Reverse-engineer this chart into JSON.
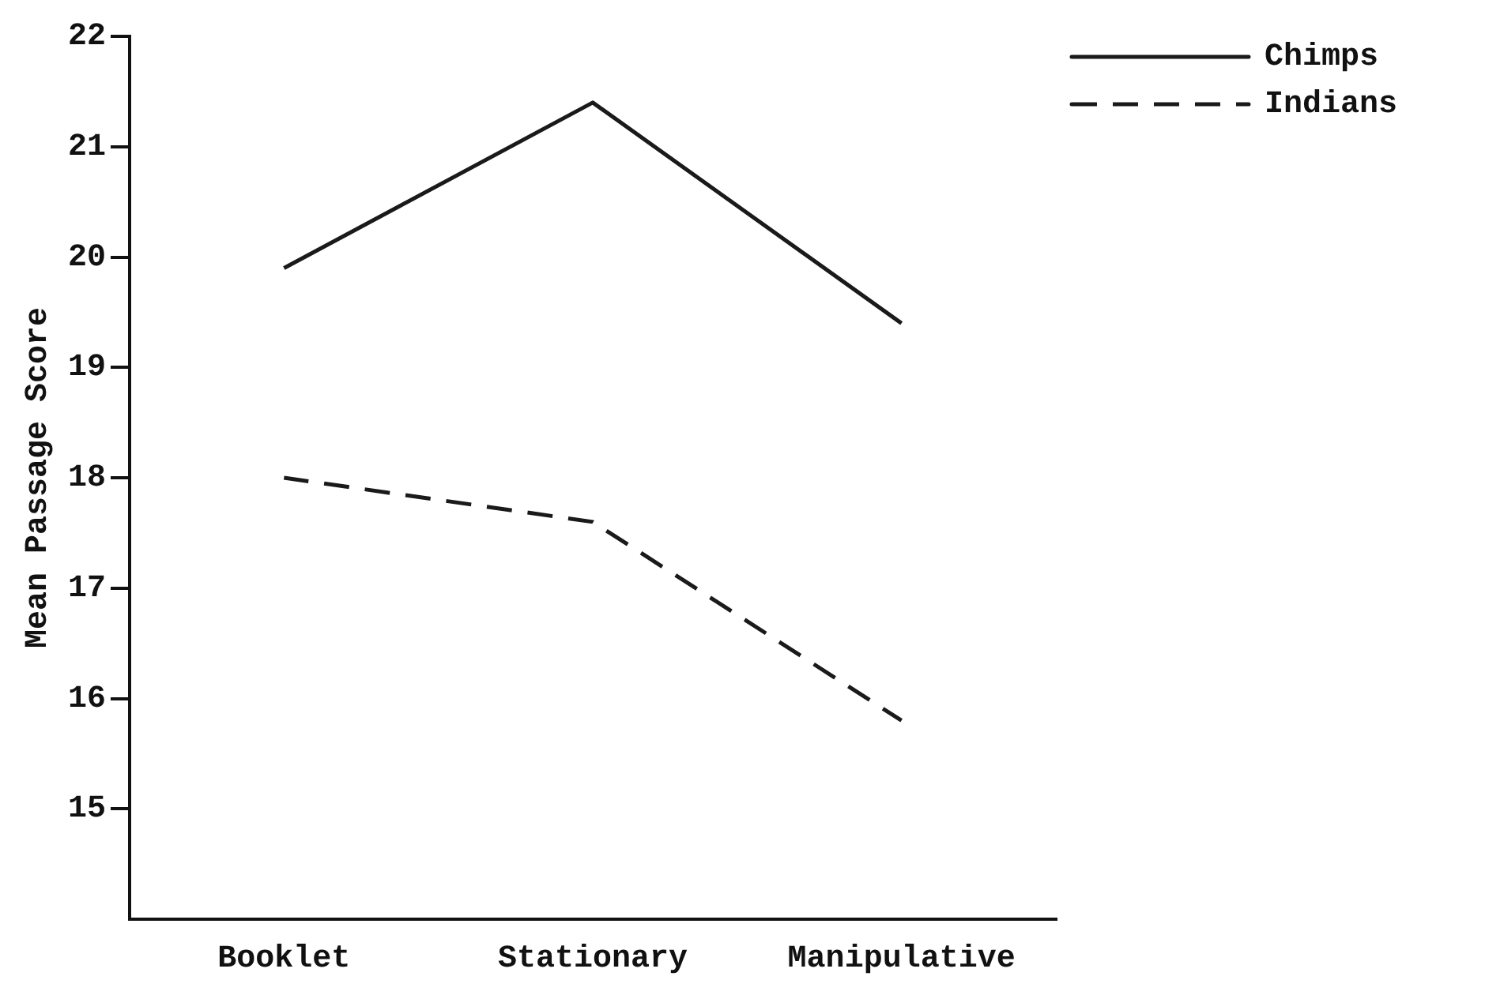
{
  "chart_data": {
    "type": "line",
    "ylabel": "Mean Passage Score",
    "categories": [
      "Booklet",
      "Stationary",
      "Manipulative"
    ],
    "series": [
      {
        "name": "Chimps",
        "color": "#1a1a1a",
        "values": [
          19.9,
          21.4,
          19.4
        ],
        "line_style": "solid"
      },
      {
        "name": "Indians",
        "color": "#1a1a1a",
        "values": [
          18.0,
          17.6,
          15.8
        ],
        "line_style": "dashed"
      }
    ],
    "ylim": [
      14,
      22
    ],
    "yticks": [
      15,
      16,
      17,
      18,
      19,
      20,
      21,
      22
    ],
    "grid": false,
    "legend": "top right",
    "marker": "none"
  }
}
